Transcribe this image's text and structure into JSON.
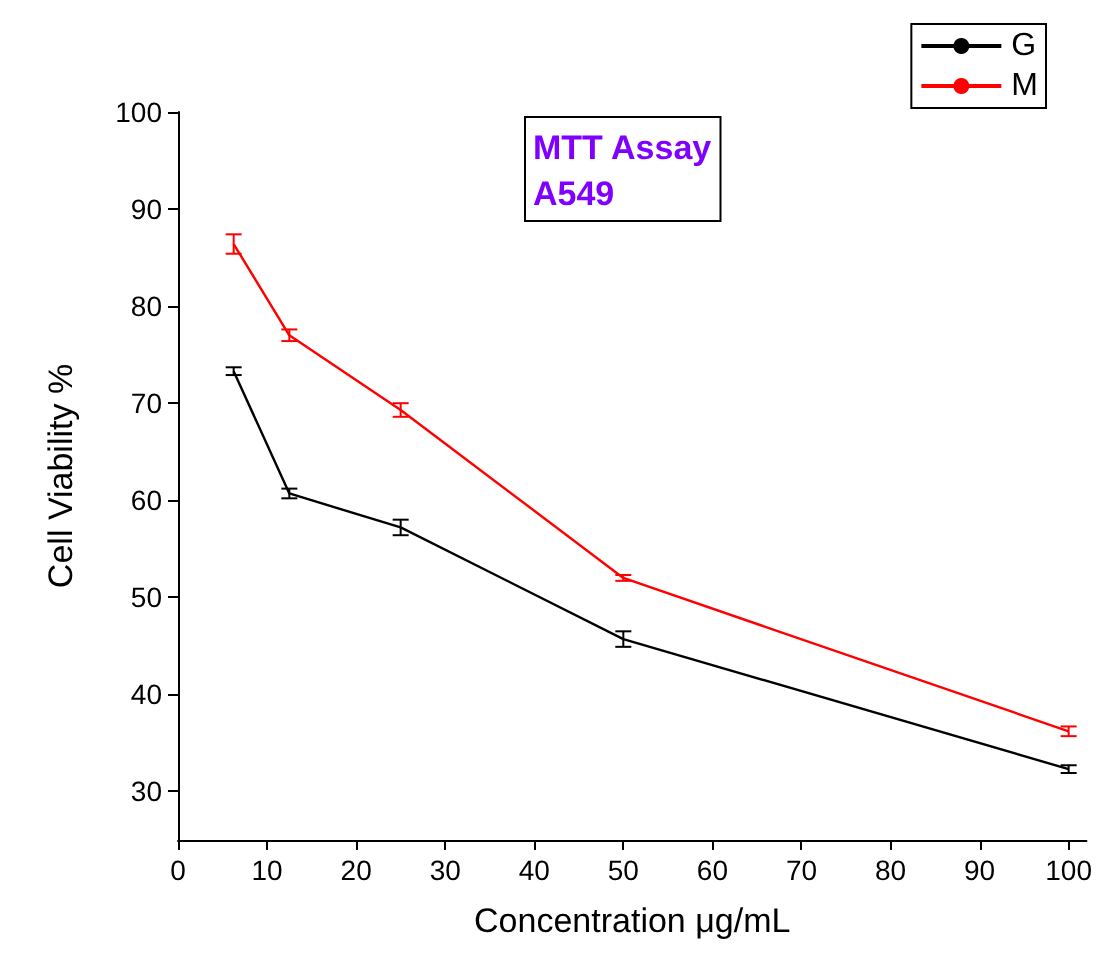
{
  "chart_data": {
    "type": "line",
    "xlabel": "Concentration μg/mL",
    "ylabel": "Cell Viability %",
    "annotations": [
      "MTT Assay\nA549"
    ],
    "x": [
      6.25,
      12.5,
      25,
      50,
      100
    ],
    "series": [
      {
        "name": "G",
        "color": "#000000",
        "values": [
          73.3,
          60.7,
          57.2,
          45.7,
          32.3
        ],
        "errors": [
          0.4,
          0.5,
          0.8,
          0.8,
          0.4
        ]
      },
      {
        "name": "M",
        "color": "#ff0000",
        "values": [
          86.4,
          77.0,
          69.3,
          52.0,
          36.2
        ],
        "errors": [
          1.0,
          0.6,
          0.7,
          0.3,
          0.5
        ]
      }
    ],
    "xlim": [
      0,
      102
    ],
    "xticks": [
      0,
      10,
      20,
      30,
      40,
      50,
      60,
      70,
      80,
      90,
      100
    ],
    "ylim": [
      25,
      100
    ],
    "yticks": [
      30,
      40,
      50,
      60,
      70,
      80,
      90,
      100
    ],
    "grid": false,
    "legend": "top right",
    "marker": "none",
    "line_style": "solid"
  }
}
